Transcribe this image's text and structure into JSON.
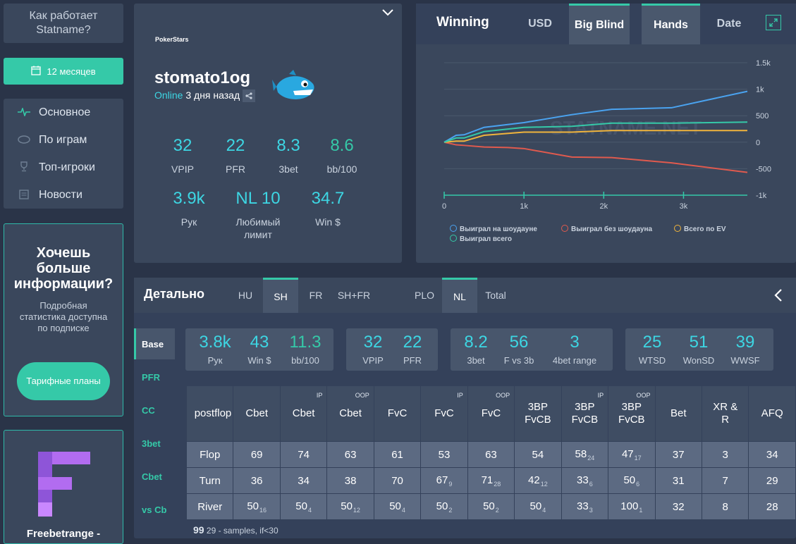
{
  "sidebar": {
    "how_it_works": "Как работает Statname?",
    "period": "12 месяцев",
    "nav": [
      {
        "label": "Основное",
        "icon": "pulse-icon"
      },
      {
        "label": "По играм",
        "icon": "table-icon"
      },
      {
        "label": "Топ-игроки",
        "icon": "trophy-icon"
      },
      {
        "label": "Новости",
        "icon": "news-icon"
      }
    ],
    "promo": {
      "title": "Хочешь больше информации?",
      "text": "Подробная статистика доступна по подписке",
      "button": "Тарифные планы"
    },
    "ad": {
      "title": "Freebetrange -"
    }
  },
  "profile": {
    "room": "PokerStars",
    "name": "stomato1og",
    "status_online": "Online",
    "status_ago": "3 дня назад",
    "stats_row1": [
      {
        "value": "32",
        "label": "VPIP"
      },
      {
        "value": "22",
        "label": "PFR"
      },
      {
        "value": "8.3",
        "label": "3bet"
      },
      {
        "value": "8.6",
        "label": "bb/100"
      }
    ],
    "stats_row2": [
      {
        "value": "3.9k",
        "label": "Рук"
      },
      {
        "value": "NL 10",
        "label": "Любимый лимит"
      },
      {
        "value": "34.7",
        "label": "Win $"
      }
    ]
  },
  "winning": {
    "title": "Winning",
    "tabs": [
      "USD",
      "Big Blind",
      "Hands",
      "Date"
    ],
    "watermark": "STATNAME.NET"
  },
  "chart_data": {
    "type": "line",
    "x_ticks": [
      "0",
      "1k",
      "2k",
      "3k"
    ],
    "y_ticks": [
      "1.5k",
      "1k",
      "500",
      "0",
      "-500",
      "-1k"
    ],
    "xlim": [
      0,
      3800
    ],
    "ylim": [
      -1000,
      1500
    ],
    "series": [
      {
        "name": "Выиграл на шоудауне",
        "color": "#4aa3f0",
        "x": [
          0,
          150,
          250,
          500,
          1000,
          1600,
          2100,
          2850,
          3800
        ],
        "y": [
          0,
          130,
          140,
          280,
          370,
          520,
          620,
          650,
          960
        ]
      },
      {
        "name": "Выиграл без шоудауна",
        "color": "#e05a4e",
        "x": [
          0,
          150,
          250,
          500,
          800,
          1000,
          1600,
          2100,
          2850,
          3800
        ],
        "y": [
          0,
          -50,
          -60,
          -90,
          -100,
          -120,
          -280,
          -290,
          -390,
          -570
        ]
      },
      {
        "name": "Всего по EV",
        "color": "#f0b43c",
        "x": [
          0,
          150,
          250,
          500,
          1000,
          1600,
          2100,
          2850,
          3800
        ],
        "y": [
          0,
          20,
          20,
          130,
          190,
          190,
          220,
          220,
          220
        ]
      },
      {
        "name": "Выиграл всего",
        "color": "#35c9a8",
        "x": [
          0,
          150,
          250,
          500,
          1000,
          1600,
          2100,
          2850,
          3800
        ],
        "y": [
          0,
          80,
          80,
          200,
          280,
          300,
          360,
          360,
          380
        ]
      }
    ]
  },
  "detail": {
    "title": "Детально",
    "tabs": [
      "HU",
      "SH",
      "FR",
      "SH+FR",
      "PLO",
      "NL",
      "Total"
    ],
    "vtabs": [
      "Base",
      "PFR",
      "CC",
      "3bet",
      "Cbet",
      "vs Cb"
    ],
    "boxes": [
      [
        {
          "value": "3.8k",
          "label": "Рук",
          "color": "#3dd6e3"
        },
        {
          "value": "43",
          "label": "Win $",
          "color": "#3dd6e3"
        },
        {
          "value": "11.3",
          "label": "bb/100",
          "color": "#35c9a8"
        }
      ],
      [
        {
          "value": "32",
          "label": "VPIP",
          "color": "#3dd6e3"
        },
        {
          "value": "22",
          "label": "PFR",
          "color": "#3dd6e3"
        }
      ],
      [
        {
          "value": "8.2",
          "label": "3bet",
          "color": "#3dd6e3"
        },
        {
          "value": "56",
          "label": "F vs 3b",
          "color": "#3dd6e3"
        },
        {
          "value": "3",
          "label": "4bet range",
          "color": "#3dd6e3"
        }
      ],
      [
        {
          "value": "25",
          "label": "WTSD",
          "color": "#3dd6e3"
        },
        {
          "value": "51",
          "label": "WonSD",
          "color": "#3dd6e3"
        },
        {
          "value": "39",
          "label": "WWSF",
          "color": "#3dd6e3"
        }
      ]
    ],
    "postflop": {
      "headers": [
        {
          "label": "postflop",
          "pos": ""
        },
        {
          "label": "Cbet",
          "pos": ""
        },
        {
          "label": "Cbet",
          "pos": "IP"
        },
        {
          "label": "Cbet",
          "pos": "OOP"
        },
        {
          "label": "FvC",
          "pos": ""
        },
        {
          "label": "FvC",
          "pos": "IP"
        },
        {
          "label": "FvC",
          "pos": "OOP"
        },
        {
          "label": "3BP FvCB",
          "pos": ""
        },
        {
          "label": "3BP FvCB",
          "pos": "IP"
        },
        {
          "label": "3BP FvCB",
          "pos": "OOP"
        },
        {
          "label": "Bet",
          "pos": ""
        },
        {
          "label": "XR & R",
          "pos": ""
        },
        {
          "label": "AFQ",
          "pos": ""
        }
      ],
      "rows": [
        {
          "street": "Flop",
          "cells": [
            [
              "69",
              ""
            ],
            [
              "74",
              ""
            ],
            [
              "63",
              ""
            ],
            [
              "61",
              ""
            ],
            [
              "53",
              ""
            ],
            [
              "63",
              ""
            ],
            [
              "54",
              ""
            ],
            [
              "58",
              "24"
            ],
            [
              "47",
              "17"
            ],
            [
              "37",
              ""
            ],
            [
              "3",
              ""
            ],
            [
              "34",
              ""
            ]
          ]
        },
        {
          "street": "Turn",
          "cells": [
            [
              "36",
              ""
            ],
            [
              "34",
              ""
            ],
            [
              "38",
              ""
            ],
            [
              "70",
              ""
            ],
            [
              "67",
              "9"
            ],
            [
              "71",
              "28"
            ],
            [
              "42",
              "12"
            ],
            [
              "33",
              "6"
            ],
            [
              "50",
              "6"
            ],
            [
              "31",
              ""
            ],
            [
              "7",
              ""
            ],
            [
              "29",
              ""
            ]
          ]
        },
        {
          "street": "River",
          "cells": [
            [
              "50",
              "16"
            ],
            [
              "50",
              "4"
            ],
            [
              "50",
              "12"
            ],
            [
              "50",
              "4"
            ],
            [
              "50",
              "2"
            ],
            [
              "50",
              "2"
            ],
            [
              "50",
              "4"
            ],
            [
              "33",
              "3"
            ],
            [
              "100",
              "1"
            ],
            [
              "32",
              ""
            ],
            [
              "8",
              ""
            ],
            [
              "28",
              ""
            ]
          ]
        }
      ]
    },
    "footnote_num": "99",
    "footnote_text": "29 - samples, if<30"
  }
}
